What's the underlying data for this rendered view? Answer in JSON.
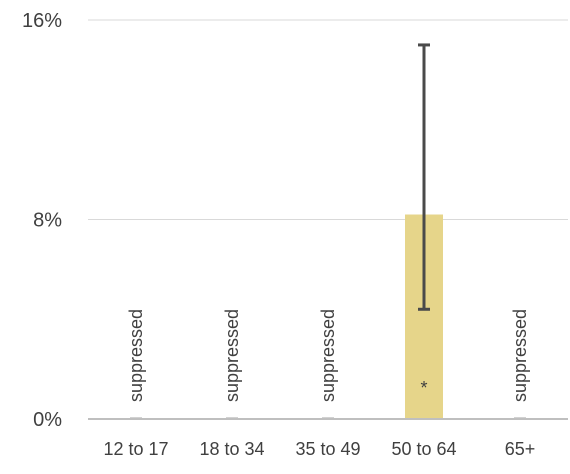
{
  "chart_data": {
    "type": "bar",
    "categories": [
      "12 to 17",
      "18 to 34",
      "35 to 49",
      "50 to 64",
      "65+"
    ],
    "values": [
      0,
      0,
      0,
      8.2,
      0
    ],
    "error_low": [
      null,
      null,
      null,
      4.4,
      null
    ],
    "error_high": [
      null,
      null,
      null,
      15.0,
      null
    ],
    "bar_labels": [
      "suppressed",
      "suppressed",
      "suppressed",
      "*",
      "suppressed"
    ],
    "y_ticks": [
      "0%",
      "8%",
      "16%"
    ],
    "y_tick_values": [
      0,
      8,
      16
    ],
    "ylim": [
      0,
      16
    ],
    "grid": true,
    "title": "",
    "xlabel": "",
    "ylabel": "",
    "colors": {
      "bar": "#E6D58A",
      "error_bar": "#4A4A4A",
      "gridline": "#D9D9D9",
      "axis": "#BFBFBF",
      "text": "#404040"
    }
  }
}
